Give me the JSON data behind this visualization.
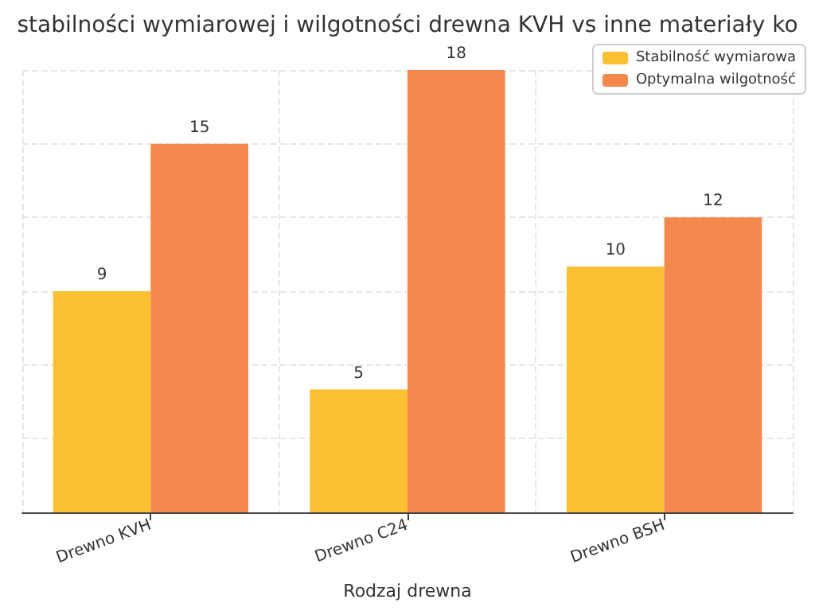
{
  "chart_data": {
    "type": "bar",
    "title": "stabilności wymiarowej i wilgotności drewna KVH vs inne materiały ko",
    "xlabel": "Rodzaj drewna",
    "categories": [
      "Drewno KVH",
      "Drewno C24",
      "Drewno BSH"
    ],
    "series": [
      {
        "name": "Stabilność wymiarowa",
        "color": "#fbbf33",
        "values": [
          9,
          5,
          10
        ]
      },
      {
        "name": "Optymalna wilgotność",
        "color": "#f4874b",
        "values": [
          15,
          18,
          12
        ]
      }
    ],
    "data_labels": true,
    "grid": true,
    "legend": "top right"
  }
}
